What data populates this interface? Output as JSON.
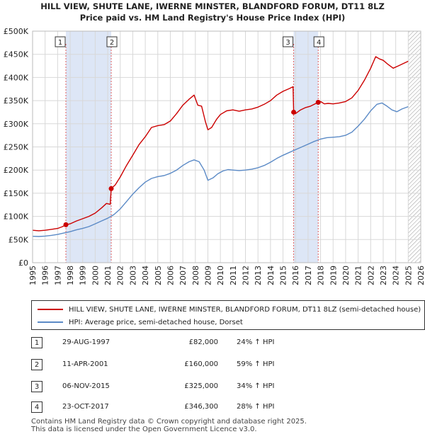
{
  "title": "HILL VIEW, SHUTE LANE, IWERNE MINSTER, BLANDFORD FORUM, DT11 8LZ",
  "subtitle": "Price paid vs. HM Land Registry's House Price Index (HPI)",
  "colors": {
    "property_line": "#cc0000",
    "hpi_line": "#5b8ac6",
    "shade": "#dde6f6",
    "grid": "#d8d8d8",
    "marker_dash": "#e06060"
  },
  "chart_data": {
    "type": "line",
    "title": "HILL VIEW, SHUTE LANE, IWERNE MINSTER, BLANDFORD FORUM, DT11 8LZ",
    "subtitle": "Price paid vs. HM Land Registry's House Price Index (HPI)",
    "xlim": [
      1995,
      2026
    ],
    "ylim": [
      0,
      500000
    ],
    "xticks": [
      1995,
      1996,
      1997,
      1998,
      1999,
      2000,
      2001,
      2002,
      2003,
      2004,
      2005,
      2006,
      2007,
      2008,
      2009,
      2010,
      2011,
      2012,
      2013,
      2014,
      2015,
      2016,
      2017,
      2018,
      2019,
      2020,
      2021,
      2022,
      2023,
      2024,
      2025,
      2026
    ],
    "yticks": [
      {
        "value": 0,
        "label": "£0"
      },
      {
        "value": 50000,
        "label": "£50K"
      },
      {
        "value": 100000,
        "label": "£100K"
      },
      {
        "value": 150000,
        "label": "£150K"
      },
      {
        "value": 200000,
        "label": "£200K"
      },
      {
        "value": 250000,
        "label": "£250K"
      },
      {
        "value": 300000,
        "label": "£300K"
      },
      {
        "value": 350000,
        "label": "£350K"
      },
      {
        "value": 400000,
        "label": "£400K"
      },
      {
        "value": 450000,
        "label": "£450K"
      },
      {
        "value": 500000,
        "label": "£500K"
      }
    ],
    "grid": true,
    "shaded_ranges": [
      [
        1997.66,
        2001.28
      ],
      [
        2015.85,
        2017.81
      ]
    ],
    "hatched_from": 2025.0,
    "series": [
      {
        "name": "HILL VIEW, SHUTE LANE, IWERNE MINSTER, BLANDFORD FORUM, DT11 8LZ (semi-detached house)",
        "color": "#cc0000",
        "points": [
          [
            1995.0,
            70000
          ],
          [
            1995.5,
            69000
          ],
          [
            1996.0,
            70000
          ],
          [
            1996.5,
            72000
          ],
          [
            1997.0,
            74000
          ],
          [
            1997.4,
            78000
          ],
          [
            1997.66,
            82000
          ],
          [
            1998.0,
            84000
          ],
          [
            1998.5,
            90000
          ],
          [
            1999.0,
            95000
          ],
          [
            1999.5,
            100000
          ],
          [
            2000.0,
            107000
          ],
          [
            2000.5,
            118000
          ],
          [
            2000.9,
            128000
          ],
          [
            2001.2,
            126000
          ],
          [
            2001.28,
            160000
          ],
          [
            2001.6,
            168000
          ],
          [
            2002.0,
            185000
          ],
          [
            2002.5,
            210000
          ],
          [
            2003.0,
            232000
          ],
          [
            2003.5,
            255000
          ],
          [
            2004.0,
            272000
          ],
          [
            2004.5,
            292000
          ],
          [
            2005.0,
            296000
          ],
          [
            2005.5,
            298000
          ],
          [
            2006.0,
            306000
          ],
          [
            2006.5,
            322000
          ],
          [
            2007.0,
            340000
          ],
          [
            2007.5,
            353000
          ],
          [
            2007.9,
            362000
          ],
          [
            2008.2,
            340000
          ],
          [
            2008.5,
            338000
          ],
          [
            2008.8,
            305000
          ],
          [
            2009.0,
            287000
          ],
          [
            2009.3,
            292000
          ],
          [
            2009.7,
            310000
          ],
          [
            2010.0,
            320000
          ],
          [
            2010.5,
            328000
          ],
          [
            2011.0,
            330000
          ],
          [
            2011.5,
            327000
          ],
          [
            2012.0,
            330000
          ],
          [
            2012.5,
            332000
          ],
          [
            2013.0,
            336000
          ],
          [
            2013.5,
            342000
          ],
          [
            2014.0,
            350000
          ],
          [
            2014.5,
            362000
          ],
          [
            2015.0,
            370000
          ],
          [
            2015.5,
            376000
          ],
          [
            2015.8,
            380000
          ],
          [
            2015.85,
            325000
          ],
          [
            2016.0,
            322000
          ],
          [
            2016.4,
            330000
          ],
          [
            2016.8,
            335000
          ],
          [
            2017.2,
            338000
          ],
          [
            2017.5,
            342000
          ],
          [
            2017.81,
            346300
          ],
          [
            2018.0,
            348000
          ],
          [
            2018.3,
            343000
          ],
          [
            2018.6,
            344000
          ],
          [
            2019.0,
            343000
          ],
          [
            2019.5,
            345000
          ],
          [
            2020.0,
            348000
          ],
          [
            2020.5,
            356000
          ],
          [
            2021.0,
            372000
          ],
          [
            2021.5,
            394000
          ],
          [
            2022.0,
            420000
          ],
          [
            2022.4,
            445000
          ],
          [
            2022.7,
            440000
          ],
          [
            2023.0,
            437000
          ],
          [
            2023.4,
            428000
          ],
          [
            2023.8,
            420000
          ],
          [
            2024.2,
            425000
          ],
          [
            2024.6,
            430000
          ],
          [
            2025.0,
            435000
          ]
        ]
      },
      {
        "name": "HPI: Average price, semi-detached house, Dorset",
        "color": "#5b8ac6",
        "points": [
          [
            1995.0,
            57000
          ],
          [
            1995.5,
            56500
          ],
          [
            1996.0,
            57500
          ],
          [
            1996.5,
            59000
          ],
          [
            1997.0,
            61000
          ],
          [
            1997.5,
            64000
          ],
          [
            1998.0,
            67000
          ],
          [
            1998.5,
            71000
          ],
          [
            1999.0,
            74000
          ],
          [
            1999.5,
            78000
          ],
          [
            2000.0,
            84000
          ],
          [
            2000.5,
            90000
          ],
          [
            2001.0,
            96000
          ],
          [
            2001.5,
            104000
          ],
          [
            2002.0,
            116000
          ],
          [
            2002.5,
            132000
          ],
          [
            2003.0,
            148000
          ],
          [
            2003.5,
            162000
          ],
          [
            2004.0,
            174000
          ],
          [
            2004.5,
            182000
          ],
          [
            2005.0,
            186000
          ],
          [
            2005.5,
            188000
          ],
          [
            2006.0,
            193000
          ],
          [
            2006.5,
            200000
          ],
          [
            2007.0,
            210000
          ],
          [
            2007.5,
            218000
          ],
          [
            2007.9,
            222000
          ],
          [
            2008.3,
            218000
          ],
          [
            2008.7,
            200000
          ],
          [
            2009.0,
            178000
          ],
          [
            2009.4,
            183000
          ],
          [
            2009.8,
            192000
          ],
          [
            2010.2,
            198000
          ],
          [
            2010.6,
            201000
          ],
          [
            2011.0,
            200000
          ],
          [
            2011.5,
            199000
          ],
          [
            2012.0,
            200000
          ],
          [
            2012.5,
            202000
          ],
          [
            2013.0,
            205000
          ],
          [
            2013.5,
            210000
          ],
          [
            2014.0,
            217000
          ],
          [
            2014.5,
            225000
          ],
          [
            2015.0,
            232000
          ],
          [
            2015.5,
            238000
          ],
          [
            2016.0,
            244000
          ],
          [
            2016.5,
            250000
          ],
          [
            2017.0,
            256000
          ],
          [
            2017.5,
            262000
          ],
          [
            2018.0,
            267000
          ],
          [
            2018.5,
            270000
          ],
          [
            2019.0,
            271000
          ],
          [
            2019.5,
            272000
          ],
          [
            2020.0,
            275000
          ],
          [
            2020.5,
            282000
          ],
          [
            2021.0,
            295000
          ],
          [
            2021.5,
            310000
          ],
          [
            2022.0,
            328000
          ],
          [
            2022.5,
            342000
          ],
          [
            2022.9,
            345000
          ],
          [
            2023.3,
            338000
          ],
          [
            2023.7,
            330000
          ],
          [
            2024.1,
            326000
          ],
          [
            2024.5,
            332000
          ],
          [
            2025.0,
            337000
          ]
        ]
      }
    ],
    "sales": [
      {
        "label": "1",
        "x": 1997.66,
        "y": 82000
      },
      {
        "label": "2",
        "x": 2001.28,
        "y": 160000
      },
      {
        "label": "3",
        "x": 2015.85,
        "y": 325000
      },
      {
        "label": "4",
        "x": 2017.81,
        "y": 346300
      }
    ]
  },
  "legend": {
    "property_label": "HILL VIEW, SHUTE LANE, IWERNE MINSTER, BLANDFORD FORUM, DT11 8LZ (semi-detached house)",
    "hpi_label": "HPI: Average price, semi-detached house, Dorset"
  },
  "transactions": [
    {
      "num": "1",
      "date": "29-AUG-1997",
      "price": "£82,000",
      "hpi": "24% ↑ HPI"
    },
    {
      "num": "2",
      "date": "11-APR-2001",
      "price": "£160,000",
      "hpi": "59% ↑ HPI"
    },
    {
      "num": "3",
      "date": "06-NOV-2015",
      "price": "£325,000",
      "hpi": "34% ↑ HPI"
    },
    {
      "num": "4",
      "date": "23-OCT-2017",
      "price": "£346,300",
      "hpi": "28% ↑ HPI"
    }
  ],
  "footer": {
    "line1": "Contains HM Land Registry data © Crown copyright and database right 2025.",
    "line2": "This data is licensed under the Open Government Licence v3.0."
  }
}
